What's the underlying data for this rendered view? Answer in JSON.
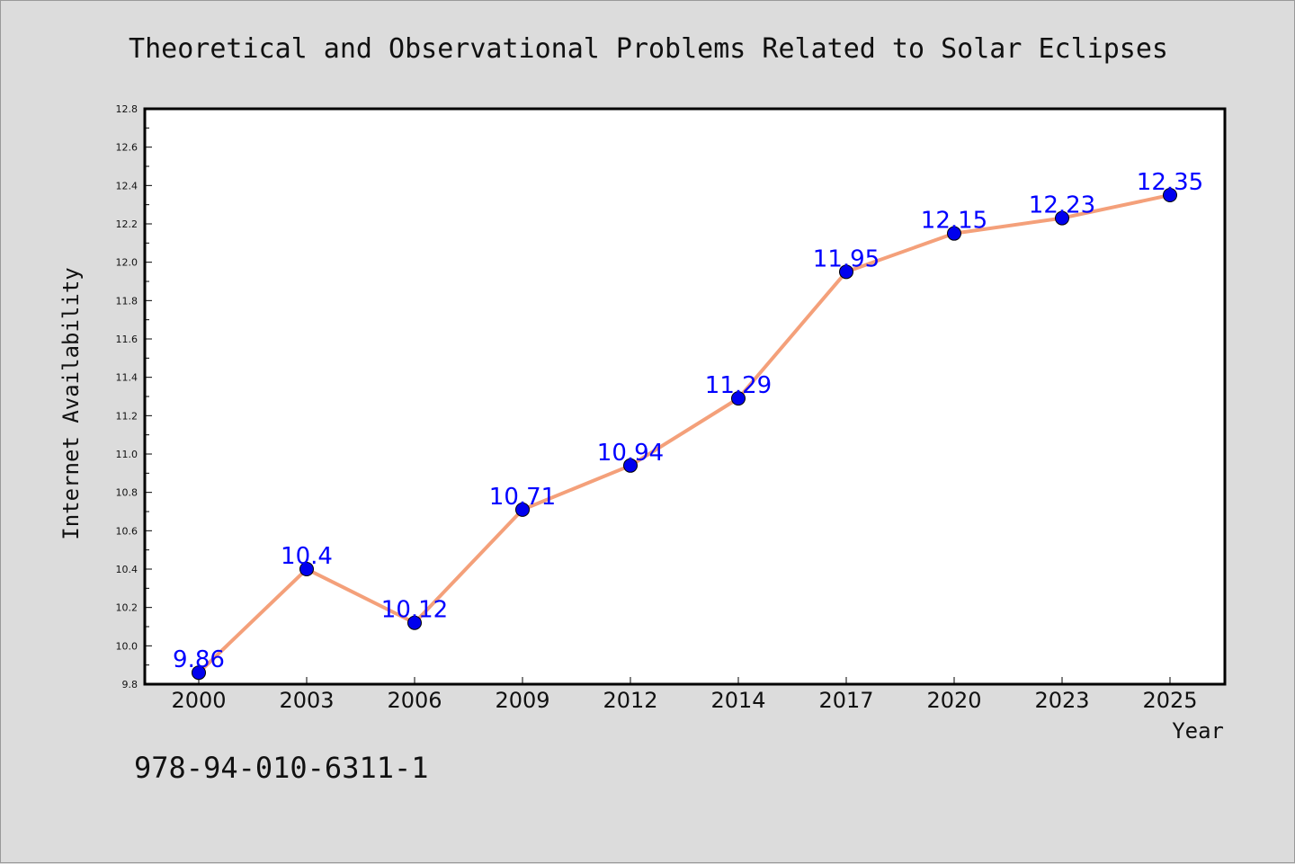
{
  "chart_data": {
    "type": "line",
    "title": "Theoretical and Observational Problems Related to Solar Eclipses",
    "xlabel": "Year",
    "ylabel": "Internet Availability",
    "categories": [
      "2000",
      "2003",
      "2006",
      "2009",
      "2012",
      "2014",
      "2017",
      "2020",
      "2023",
      "2025"
    ],
    "series": [
      {
        "values": [
          9.86,
          10.4,
          10.12,
          10.71,
          10.94,
          11.29,
          11.95,
          12.15,
          12.23,
          12.35
        ],
        "labels": [
          "9.86",
          "10.4",
          "10.12",
          "10.71",
          "10.94",
          "11.29",
          "11.95",
          "12.15",
          "12.23",
          "12.35"
        ],
        "line_color": "#f4a07a",
        "marker_color": "#0000ee",
        "label_color": "#0000ff"
      }
    ],
    "ylim": [
      9.8,
      12.8
    ],
    "yticks": [
      "9.8",
      "10.0",
      "10.2",
      "10.4",
      "10.6",
      "10.8",
      "11.0",
      "11.2",
      "11.4",
      "11.6",
      "11.8",
      "12.0",
      "12.2",
      "12.4",
      "12.6",
      "12.8"
    ],
    "grid": false,
    "legend": "none"
  },
  "footer": {
    "isbn": "978-94-010-6311-1"
  }
}
